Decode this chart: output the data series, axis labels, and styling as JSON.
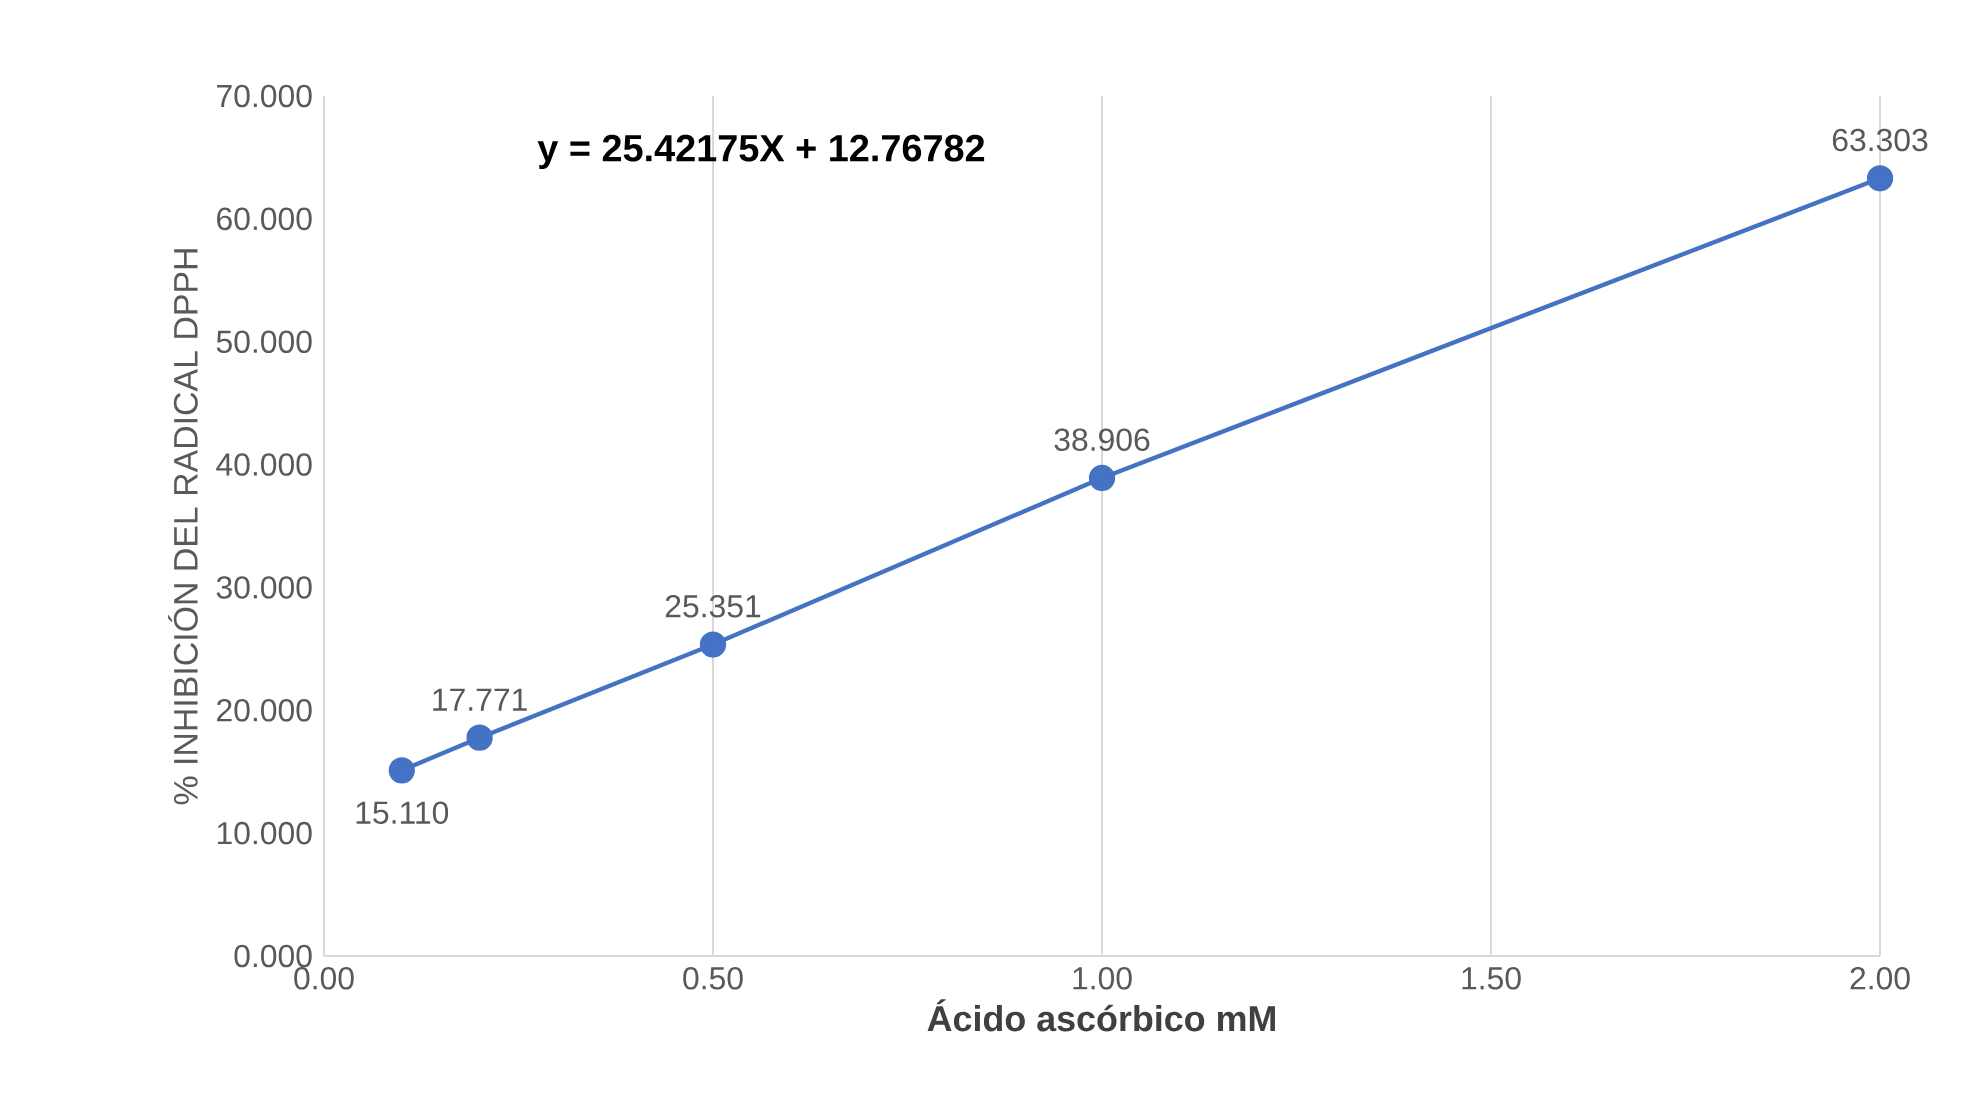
{
  "chart_data": {
    "type": "line",
    "xlabel": "Ácido ascórbico mM",
    "ylabel": "% INHIBICIÓN DEL RADICAL DPPH",
    "annotations": [
      "y = 25.42175X + 12.76782"
    ],
    "xlim": [
      0,
      2
    ],
    "xticks": [
      {
        "value": 0,
        "label": "0.00"
      },
      {
        "value": 0.5,
        "label": "0.50"
      },
      {
        "value": 1,
        "label": "1.00"
      },
      {
        "value": 1.5,
        "label": "1.50"
      },
      {
        "value": 2,
        "label": "2.00"
      }
    ],
    "ylim": [
      0,
      70
    ],
    "yticks": [
      {
        "value": 0,
        "label": "0.000"
      },
      {
        "value": 10,
        "label": "10.000"
      },
      {
        "value": 20,
        "label": "20.000"
      },
      {
        "value": 30,
        "label": "30.000"
      },
      {
        "value": 40,
        "label": "40.000"
      },
      {
        "value": 50,
        "label": "50.000"
      },
      {
        "value": 60,
        "label": "60.000"
      },
      {
        "value": 70,
        "label": "70.000"
      }
    ],
    "grid": "x",
    "marker": "circle",
    "line_style": "solid",
    "series": [
      {
        "color": "#4472c4",
        "x": [
          0.1,
          0.2,
          0.5,
          1.0,
          2.0
        ],
        "values": [
          15.11,
          17.771,
          25.351,
          38.906,
          63.303
        ],
        "value_labels": [
          "15.110",
          "17.771",
          "25.351",
          "38.906",
          "63.303"
        ]
      }
    ]
  }
}
